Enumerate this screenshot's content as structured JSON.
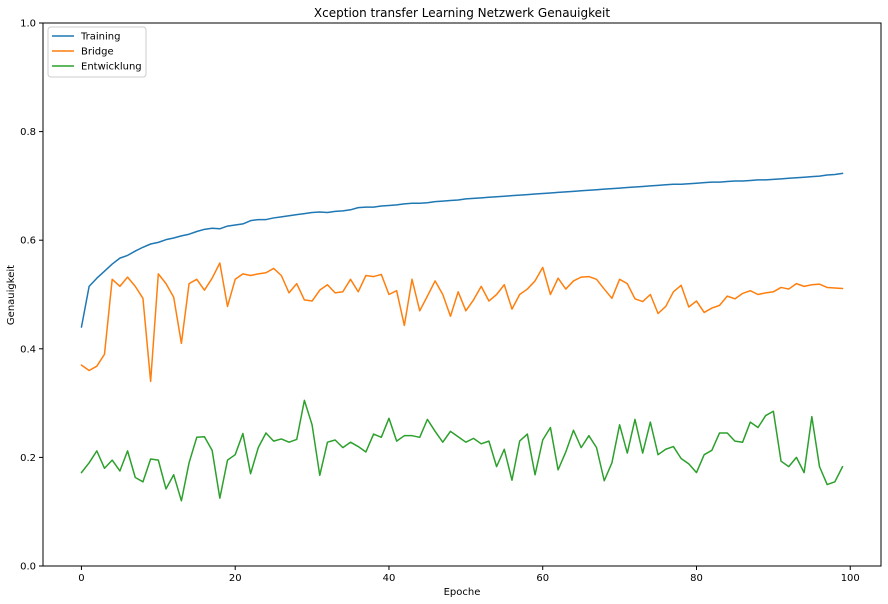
{
  "chart_data": {
    "type": "line",
    "title": "Xception transfer Learning Netzwerk Genauigkeit",
    "xlabel": "Epoche",
    "ylabel": "Genauigkeit",
    "xlim": [
      -5,
      104
    ],
    "ylim": [
      0.0,
      1.0
    ],
    "xticks": [
      0,
      20,
      40,
      60,
      80,
      100
    ],
    "yticks": [
      0.0,
      0.2,
      0.4,
      0.6,
      0.8,
      1.0
    ],
    "xtick_labels": [
      "0",
      "20",
      "40",
      "60",
      "80",
      "100"
    ],
    "ytick_labels": [
      "0.0",
      "0.2",
      "0.4",
      "0.6",
      "0.8",
      "1.0"
    ],
    "grid": false,
    "legend_position": "top-left",
    "series": [
      {
        "name": "Training",
        "color": "#1f77b4",
        "values": [
          0.44,
          0.515,
          0.53,
          0.543,
          0.556,
          0.567,
          0.572,
          0.58,
          0.587,
          0.593,
          0.596,
          0.601,
          0.604,
          0.608,
          0.611,
          0.616,
          0.62,
          0.622,
          0.621,
          0.626,
          0.628,
          0.63,
          0.636,
          0.638,
          0.638,
          0.641,
          0.643,
          0.645,
          0.647,
          0.649,
          0.651,
          0.652,
          0.651,
          0.653,
          0.654,
          0.656,
          0.66,
          0.661,
          0.661,
          0.663,
          0.664,
          0.665,
          0.667,
          0.668,
          0.668,
          0.669,
          0.671,
          0.672,
          0.673,
          0.674,
          0.676,
          0.677,
          0.678,
          0.679,
          0.68,
          0.681,
          0.682,
          0.683,
          0.684,
          0.685,
          0.686,
          0.687,
          0.688,
          0.689,
          0.69,
          0.691,
          0.692,
          0.693,
          0.694,
          0.695,
          0.696,
          0.697,
          0.698,
          0.699,
          0.7,
          0.701,
          0.702,
          0.703,
          0.703,
          0.704,
          0.705,
          0.706,
          0.707,
          0.707,
          0.708,
          0.709,
          0.709,
          0.71,
          0.711,
          0.711,
          0.712,
          0.713,
          0.714,
          0.715,
          0.716,
          0.717,
          0.718,
          0.72,
          0.721,
          0.723
        ]
      },
      {
        "name": "Bridge",
        "color": "#ff7f0e",
        "values": [
          0.37,
          0.36,
          0.368,
          0.39,
          0.528,
          0.515,
          0.532,
          0.515,
          0.493,
          0.34,
          0.538,
          0.52,
          0.495,
          0.41,
          0.52,
          0.528,
          0.508,
          0.53,
          0.558,
          0.478,
          0.528,
          0.538,
          0.535,
          0.538,
          0.54,
          0.548,
          0.535,
          0.503,
          0.52,
          0.49,
          0.488,
          0.508,
          0.518,
          0.503,
          0.505,
          0.528,
          0.505,
          0.535,
          0.533,
          0.537,
          0.5,
          0.507,
          0.443,
          0.528,
          0.47,
          0.497,
          0.525,
          0.5,
          0.46,
          0.505,
          0.47,
          0.49,
          0.515,
          0.488,
          0.5,
          0.518,
          0.473,
          0.5,
          0.51,
          0.525,
          0.55,
          0.5,
          0.53,
          0.51,
          0.525,
          0.532,
          0.533,
          0.528,
          0.51,
          0.493,
          0.528,
          0.52,
          0.492,
          0.487,
          0.5,
          0.465,
          0.478,
          0.505,
          0.517,
          0.477,
          0.488,
          0.467,
          0.475,
          0.48,
          0.497,
          0.492,
          0.502,
          0.507,
          0.5,
          0.503,
          0.505,
          0.513,
          0.51,
          0.52,
          0.515,
          0.518,
          0.519,
          0.513,
          0.512,
          0.511
        ]
      },
      {
        "name": "Entwicklung",
        "color": "#2ca02c",
        "values": [
          0.172,
          0.19,
          0.212,
          0.18,
          0.195,
          0.175,
          0.212,
          0.163,
          0.155,
          0.197,
          0.195,
          0.142,
          0.168,
          0.12,
          0.19,
          0.237,
          0.238,
          0.213,
          0.125,
          0.195,
          0.205,
          0.244,
          0.17,
          0.218,
          0.245,
          0.23,
          0.234,
          0.228,
          0.233,
          0.305,
          0.26,
          0.167,
          0.228,
          0.232,
          0.218,
          0.228,
          0.22,
          0.21,
          0.243,
          0.237,
          0.272,
          0.23,
          0.24,
          0.24,
          0.237,
          0.27,
          0.248,
          0.228,
          0.248,
          0.238,
          0.228,
          0.235,
          0.225,
          0.23,
          0.183,
          0.215,
          0.158,
          0.23,
          0.243,
          0.168,
          0.232,
          0.255,
          0.177,
          0.21,
          0.25,
          0.218,
          0.24,
          0.218,
          0.157,
          0.19,
          0.26,
          0.208,
          0.27,
          0.208,
          0.265,
          0.205,
          0.215,
          0.22,
          0.198,
          0.188,
          0.172,
          0.205,
          0.213,
          0.245,
          0.245,
          0.23,
          0.228,
          0.265,
          0.255,
          0.277,
          0.285,
          0.193,
          0.183,
          0.2,
          0.172,
          0.275,
          0.183,
          0.15,
          0.155,
          0.183
        ]
      }
    ]
  }
}
